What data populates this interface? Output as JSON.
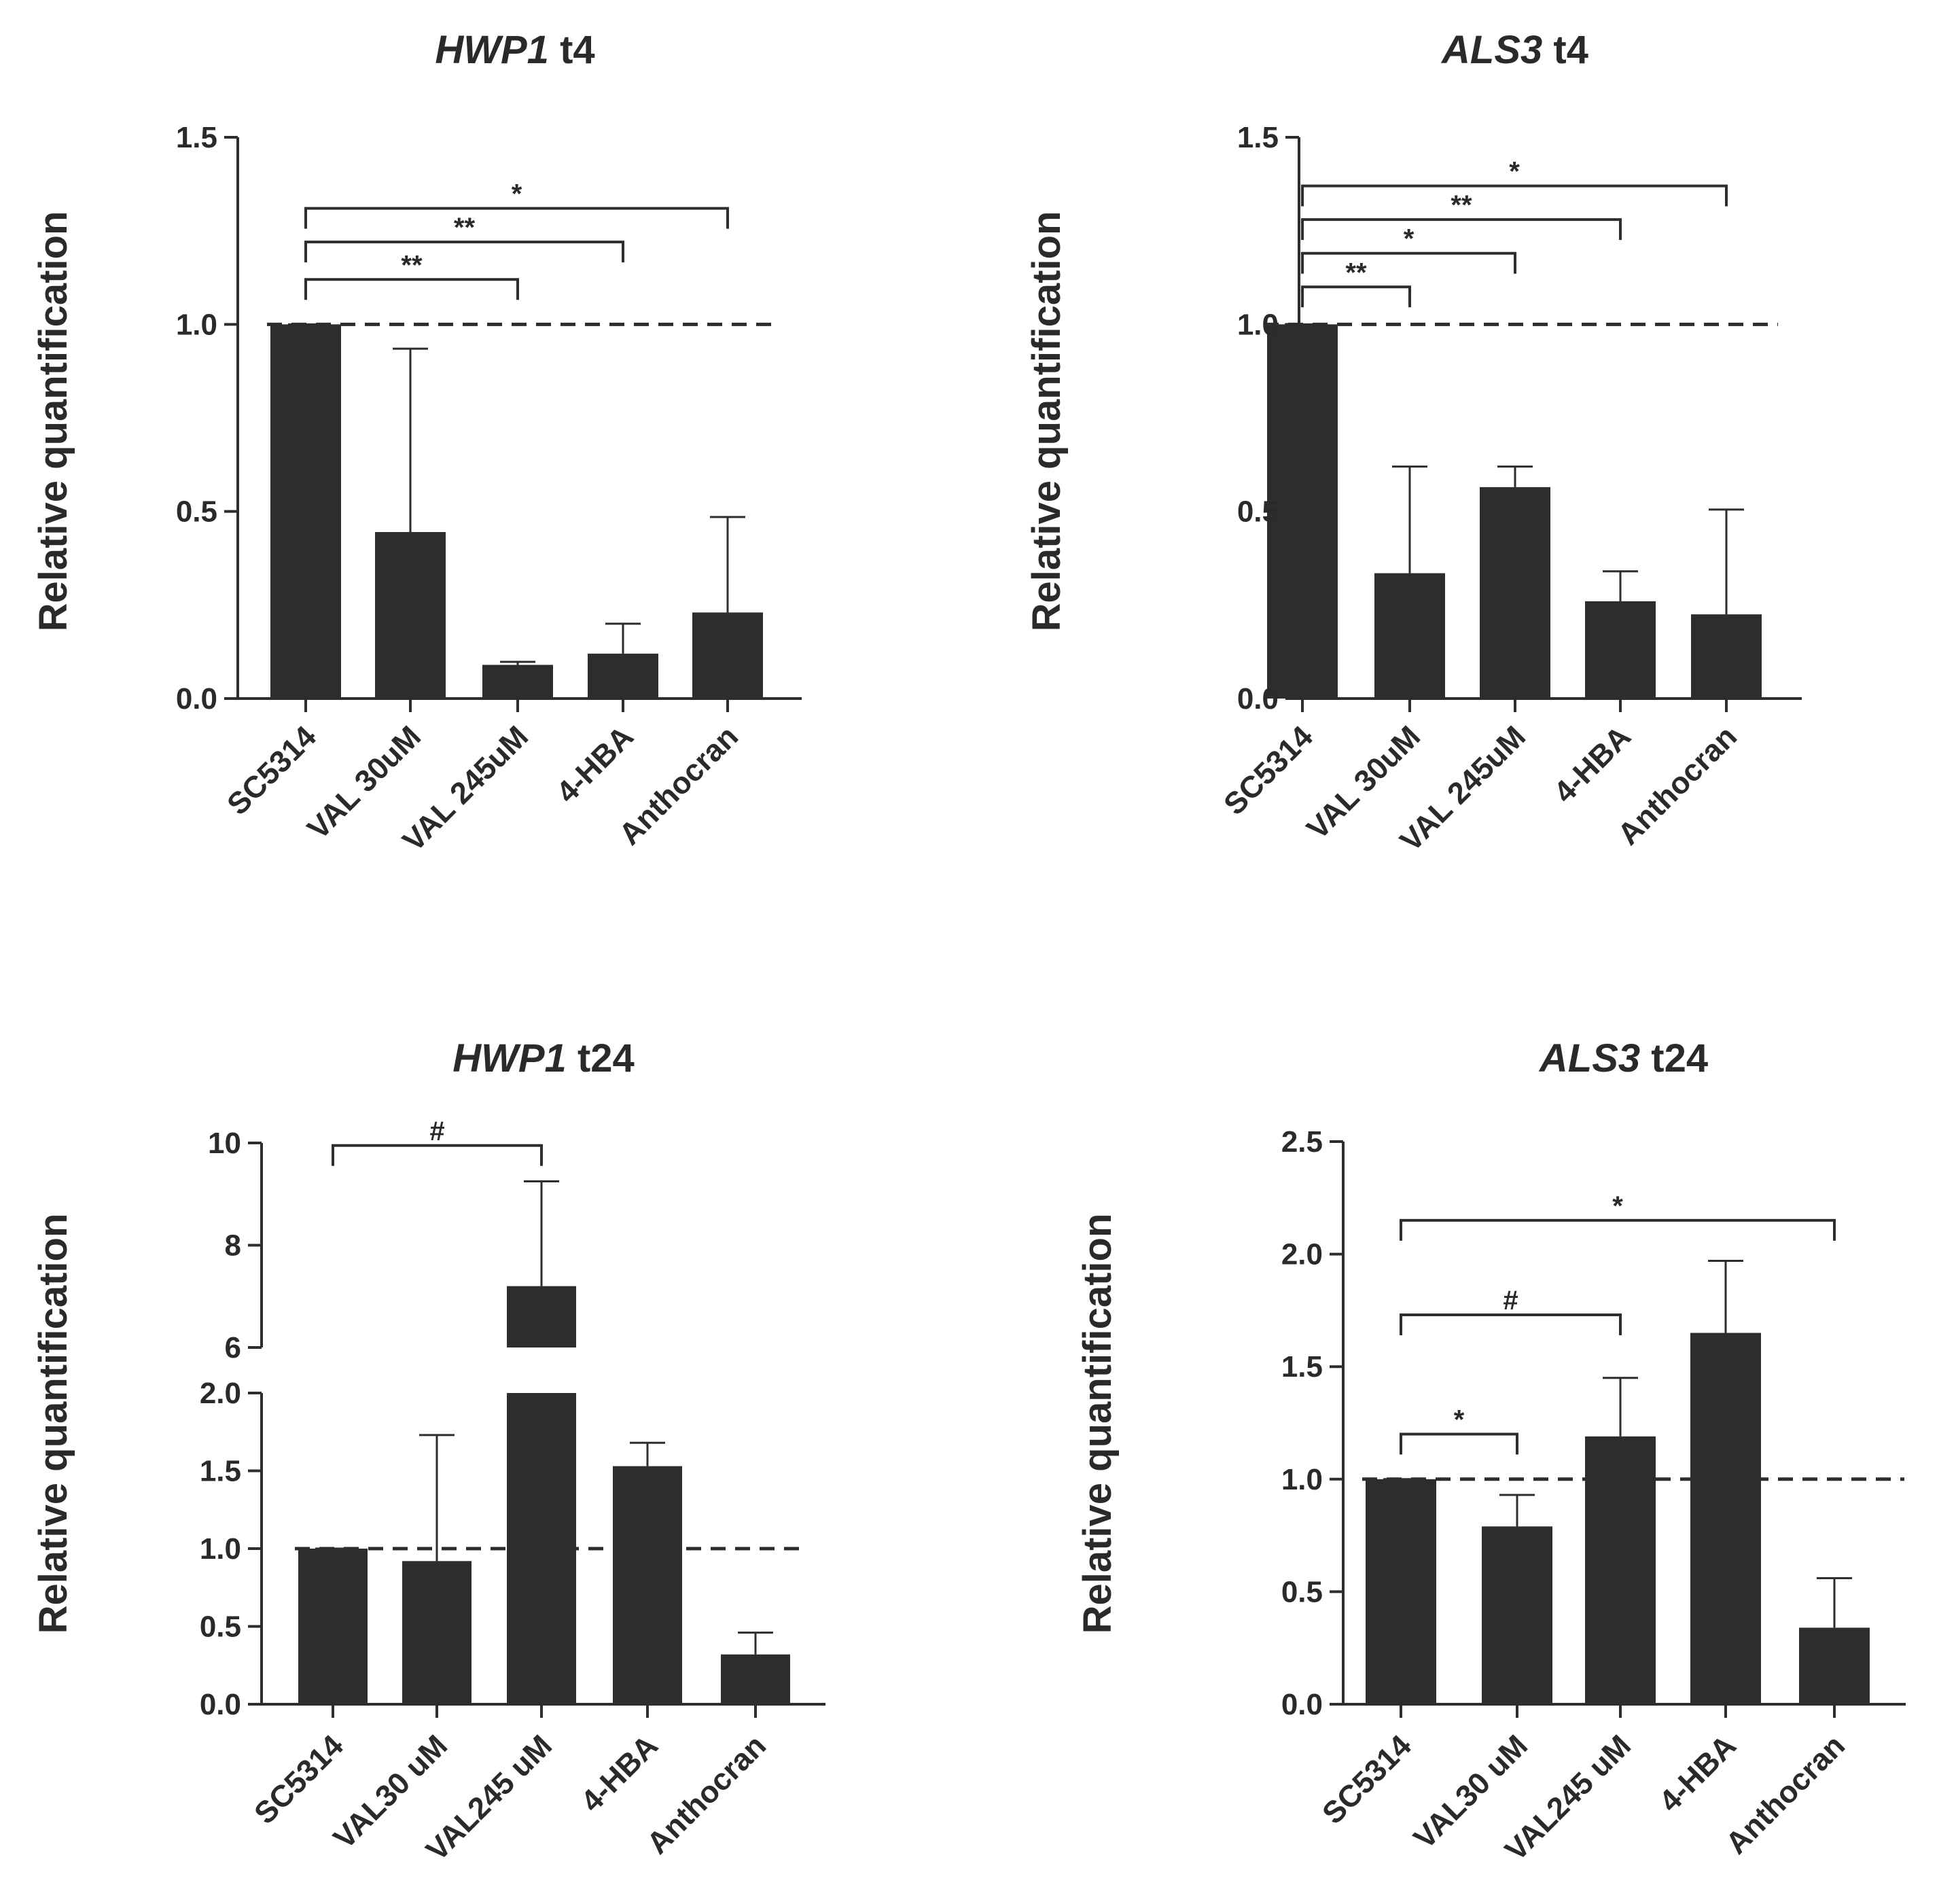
{
  "colors": {
    "bar": "#2d2d2d",
    "axis": "#2d2d2d",
    "text": "#2a2a2a"
  },
  "chart_data": [
    {
      "id": "hwp1_t4",
      "type": "bar",
      "gene": "HWP1",
      "time": "t4",
      "ylabel": "Relative quantification",
      "categories": [
        "SC5314",
        "VAL 30uM",
        "VAL 245uM",
        "4-HBA",
        "Anthocran"
      ],
      "values": [
        1.0,
        0.445,
        0.09,
        0.12,
        0.23
      ],
      "error_upper": [
        1.0,
        0.935,
        0.098,
        0.2,
        0.485
      ],
      "ylim": [
        0,
        1.5
      ],
      "yticks": [
        0.0,
        0.5,
        1.0,
        1.5
      ],
      "ytick_labels": [
        "0.0",
        "0.5",
        "1.0",
        "1.5"
      ],
      "reference_line": 1.0,
      "significance": [
        {
          "from": 0,
          "to": 2,
          "label": "**",
          "y": 1.12
        },
        {
          "from": 0,
          "to": 3,
          "label": "**",
          "y": 1.22
        },
        {
          "from": 0,
          "to": 4,
          "label": "*",
          "y": 1.31
        }
      ]
    },
    {
      "id": "als3_t4",
      "type": "bar",
      "gene": "ALS3",
      "time": "t4",
      "ylabel": "Relative quantification",
      "categories": [
        "SC5314",
        "VAL 30uM",
        "VAL 245uM",
        "4-HBA",
        "Anthocran"
      ],
      "values": [
        1.0,
        0.335,
        0.565,
        0.26,
        0.225
      ],
      "error_upper": [
        1.0,
        0.62,
        0.62,
        0.34,
        0.505
      ],
      "ylim": [
        0,
        1.5
      ],
      "yticks": [
        0.0,
        0.5,
        1.0,
        1.5
      ],
      "ytick_labels": [
        "0.0",
        "0.5",
        "1.0",
        "1.5"
      ],
      "reference_line": 1.0,
      "significance": [
        {
          "from": 0,
          "to": 1,
          "label": "**",
          "y": 1.1
        },
        {
          "from": 0,
          "to": 2,
          "label": "*",
          "y": 1.19
        },
        {
          "from": 0,
          "to": 3,
          "label": "**",
          "y": 1.28
        },
        {
          "from": 0,
          "to": 4,
          "label": "*",
          "y": 1.37
        }
      ]
    },
    {
      "id": "hwp1_t24",
      "type": "bar",
      "gene": "HWP1",
      "time": "t24",
      "ylabel": "Relative quantification",
      "categories": [
        "SC5314",
        "VAL30 uM",
        "VAL245 uM",
        "4-HBA",
        "Anthocran"
      ],
      "values": [
        1.0,
        0.92,
        7.2,
        1.53,
        0.32
      ],
      "error_upper": [
        1.0,
        1.73,
        9.25,
        1.68,
        0.46
      ],
      "broken_axis": {
        "lower": {
          "range": [
            0,
            2.0
          ],
          "ticks": [
            0.0,
            0.5,
            1.0,
            1.5,
            2.0
          ],
          "labels": [
            "0.0",
            "0.5",
            "1.0",
            "1.5",
            "2.0"
          ]
        },
        "upper": {
          "range": [
            6,
            10
          ],
          "ticks": [
            6,
            8,
            10
          ],
          "labels": [
            "6",
            "8",
            "10"
          ]
        }
      },
      "reference_line": 1.0,
      "significance": [
        {
          "from": 0,
          "to": 2,
          "label": "#",
          "y": 9.95,
          "segment": "upper"
        }
      ]
    },
    {
      "id": "als3_t24",
      "type": "bar",
      "gene": "ALS3",
      "time": "t24",
      "ylabel": "Relative quantification",
      "categories": [
        "SC5314",
        "VAL30 uM",
        "VAL245 uM",
        "4-HBA",
        "Anthocran"
      ],
      "values": [
        1.0,
        0.79,
        1.19,
        1.65,
        0.34
      ],
      "error_upper": [
        1.0,
        0.93,
        1.45,
        1.97,
        0.56
      ],
      "ylim": [
        0,
        2.5
      ],
      "yticks": [
        0.0,
        0.5,
        1.0,
        1.5,
        2.0,
        2.5
      ],
      "ytick_labels": [
        "0.0",
        "0.5",
        "1.0",
        "1.5",
        "2.0",
        "2.5"
      ],
      "reference_line": 1.0,
      "significance": [
        {
          "from": 0,
          "to": 1,
          "label": "*",
          "y": 1.2
        },
        {
          "from": 0,
          "to": 2,
          "label": "#",
          "y": 1.73
        },
        {
          "from": 0,
          "to": 4,
          "label": "*",
          "y": 2.15
        }
      ]
    }
  ]
}
